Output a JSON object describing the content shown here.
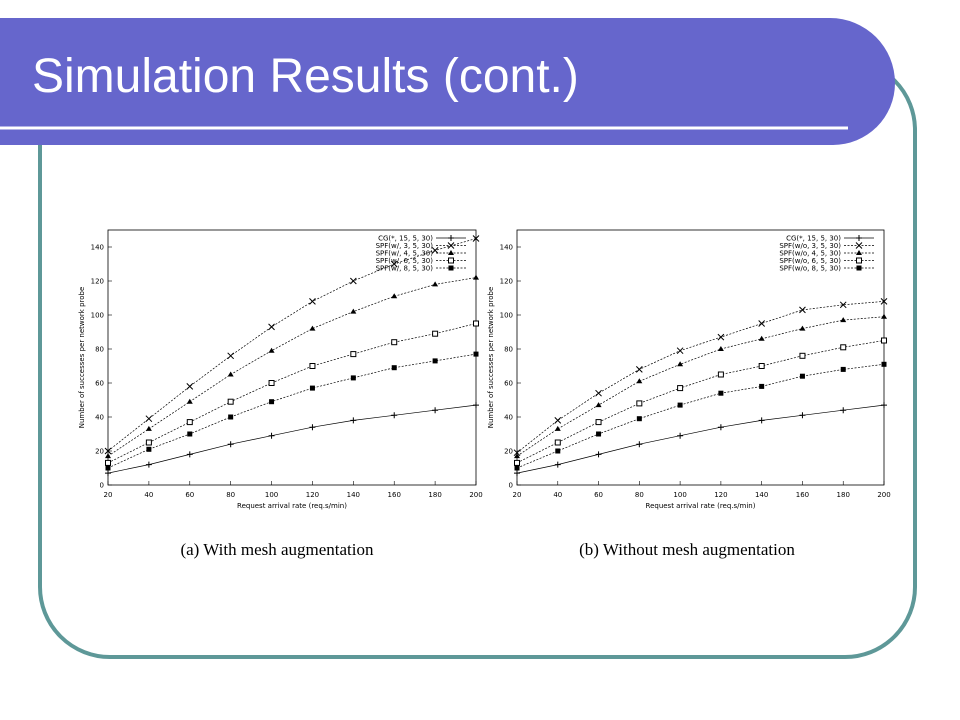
{
  "slide": {
    "title": "Simulation Results (cont.)"
  },
  "chart_data": [
    {
      "type": "line",
      "caption": "(a) With mesh augmentation",
      "x_label": "Request arrival rate (req.s/min)",
      "y_label": "Number of successes per network probe",
      "x": [
        20,
        40,
        60,
        80,
        100,
        120,
        140,
        160,
        180,
        200
      ],
      "xlim": [
        20,
        200
      ],
      "xticks": [
        20,
        40,
        60,
        80,
        100,
        120,
        140,
        160,
        180,
        200
      ],
      "ylim": [
        0,
        150
      ],
      "yticks": [
        0,
        20,
        40,
        60,
        80,
        100,
        120,
        140
      ],
      "legend": "upper-right",
      "series": [
        {
          "name": "CG(*, 15, 5, 30)",
          "marker": "plus",
          "color": "#000000",
          "values": [
            7,
            12,
            18,
            24,
            29,
            34,
            38,
            41,
            44,
            47
          ]
        },
        {
          "name": "SPF(w/, 3, 5, 30)",
          "marker": "cross",
          "color": "#000000",
          "values": [
            20,
            39,
            58,
            76,
            93,
            108,
            120,
            130,
            138,
            145
          ]
        },
        {
          "name": "SPF(w/, 4, 5, 30)",
          "marker": "triangle",
          "color": "#000000",
          "values": [
            17,
            33,
            49,
            65,
            79,
            92,
            102,
            111,
            118,
            122
          ]
        },
        {
          "name": "SPF(w/, 6, 5, 30)",
          "marker": "open-square",
          "color": "#000000",
          "values": [
            13,
            25,
            37,
            49,
            60,
            70,
            77,
            84,
            89,
            95
          ]
        },
        {
          "name": "SPF(w/, 8, 5, 30)",
          "marker": "filled-square",
          "color": "#000000",
          "values": [
            10,
            21,
            30,
            40,
            49,
            57,
            63,
            69,
            73,
            77
          ]
        }
      ]
    },
    {
      "type": "line",
      "caption": "(b) Without mesh augmentation",
      "x_label": "Request arrival rate (req.s/min)",
      "y_label": "Number of successes per network probe",
      "x": [
        20,
        40,
        60,
        80,
        100,
        120,
        140,
        160,
        180,
        200
      ],
      "xlim": [
        20,
        200
      ],
      "xticks": [
        20,
        40,
        60,
        80,
        100,
        120,
        140,
        160,
        180,
        200
      ],
      "ylim": [
        0,
        150
      ],
      "yticks": [
        0,
        20,
        40,
        60,
        80,
        100,
        120,
        140
      ],
      "legend": "upper-right",
      "series": [
        {
          "name": "CG(*, 15, 5, 30)",
          "marker": "plus",
          "color": "#000000",
          "values": [
            7,
            12,
            18,
            24,
            29,
            34,
            38,
            41,
            44,
            47
          ]
        },
        {
          "name": "SPF(w/o, 3, 5, 30)",
          "marker": "cross",
          "color": "#000000",
          "values": [
            19,
            38,
            54,
            68,
            79,
            87,
            95,
            103,
            106,
            108
          ]
        },
        {
          "name": "SPF(w/o, 4, 5, 30)",
          "marker": "triangle",
          "color": "#000000",
          "values": [
            17,
            33,
            47,
            61,
            71,
            80,
            86,
            92,
            97,
            99
          ]
        },
        {
          "name": "SPF(w/o, 6, 5, 30)",
          "marker": "open-square",
          "color": "#000000",
          "values": [
            13,
            25,
            37,
            48,
            57,
            65,
            70,
            76,
            81,
            85
          ]
        },
        {
          "name": "SPF(w/o, 8, 5, 30)",
          "marker": "filled-square",
          "color": "#000000",
          "values": [
            10,
            20,
            30,
            39,
            47,
            54,
            58,
            64,
            68,
            71
          ]
        }
      ]
    }
  ]
}
